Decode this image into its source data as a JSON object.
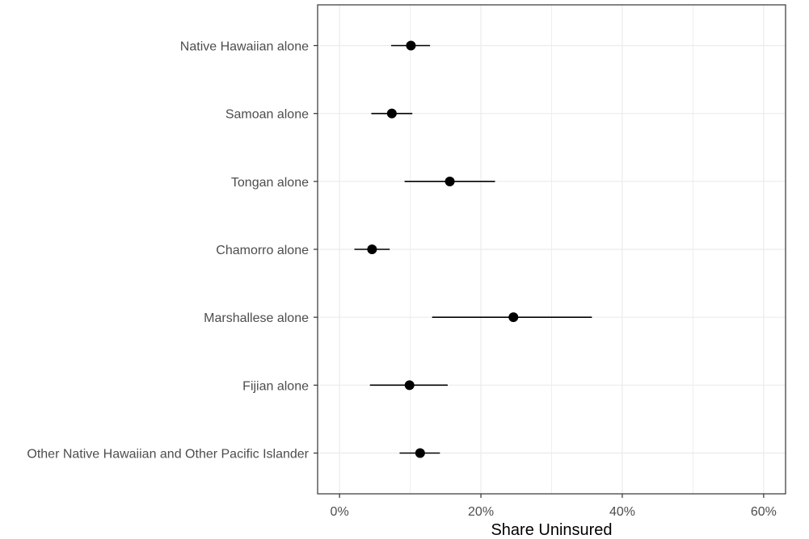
{
  "chart_data": {
    "type": "scatter",
    "subtype": "dot-with-error-bars",
    "orientation": "horizontal",
    "title": "",
    "xlabel": "Share Uninsured",
    "ylabel": "",
    "xlim": [
      -0.031,
      0.631
    ],
    "x_ticks": [
      0,
      0.2,
      0.4,
      0.6
    ],
    "x_tick_labels": [
      "0%",
      "20%",
      "40%",
      "60%"
    ],
    "grid": true,
    "legend": "none",
    "colors": {
      "point": "#000000",
      "errorbar": "#000000",
      "grid": "#ebebeb",
      "panel_border": "#333333"
    },
    "categories": [
      "Native Hawaiian alone",
      "Samoan alone",
      "Tongan alone",
      "Chamorro alone",
      "Marshallese alone",
      "Fijian alone",
      "Other Native Hawaiian and Other Pacific Islander"
    ],
    "points": [
      {
        "category": "Native Hawaiian alone",
        "value": 0.101,
        "lower": 0.073,
        "upper": 0.128
      },
      {
        "category": "Samoan alone",
        "value": 0.074,
        "lower": 0.045,
        "upper": 0.103
      },
      {
        "category": "Tongan alone",
        "value": 0.156,
        "lower": 0.092,
        "upper": 0.22
      },
      {
        "category": "Chamorro alone",
        "value": 0.046,
        "lower": 0.021,
        "upper": 0.071
      },
      {
        "category": "Marshallese alone",
        "value": 0.246,
        "lower": 0.131,
        "upper": 0.357
      },
      {
        "category": "Fijian alone",
        "value": 0.099,
        "lower": 0.043,
        "upper": 0.153
      },
      {
        "category": "Other Native Hawaiian and Other Pacific Islander",
        "value": 0.114,
        "lower": 0.085,
        "upper": 0.142
      }
    ]
  }
}
